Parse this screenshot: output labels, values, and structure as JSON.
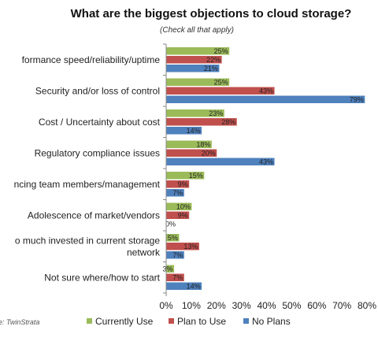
{
  "chart_data": {
    "type": "bar",
    "orientation": "horizontal",
    "title": "What are the biggest objections to cloud storage?",
    "subtitle": "(Check all that apply)",
    "source": "e: TwinStrata",
    "categories": [
      [
        "formance speed/reliability/uptime"
      ],
      [
        "Security and/or loss of control"
      ],
      [
        "Cost / Uncertainty about cost"
      ],
      [
        "Regulatory compliance issues"
      ],
      [
        "ncing team members/management"
      ],
      [
        "Adolescence of market/vendors"
      ],
      [
        "o much invested in current storage",
        "network"
      ],
      [
        "Not sure where/how to start"
      ]
    ],
    "series": [
      {
        "name": "Currently Use",
        "color": "#9bbb59",
        "values": [
          25,
          25,
          23,
          18,
          15,
          10,
          5,
          3
        ]
      },
      {
        "name": "Plan to Use",
        "color": "#c0504d",
        "values": [
          22,
          43,
          28,
          20,
          9,
          9,
          13,
          7
        ]
      },
      {
        "name": "No Plans",
        "color": "#4f81bd",
        "values": [
          21,
          79,
          14,
          43,
          7,
          0,
          7,
          14
        ]
      }
    ],
    "xlim": [
      0,
      80
    ],
    "xticks": [
      "0%",
      "10%",
      "20%",
      "30%",
      "40%",
      "50%",
      "60%",
      "70%",
      "80%"
    ],
    "value_suffix": "%",
    "legend_position": "bottom",
    "grid": false
  }
}
